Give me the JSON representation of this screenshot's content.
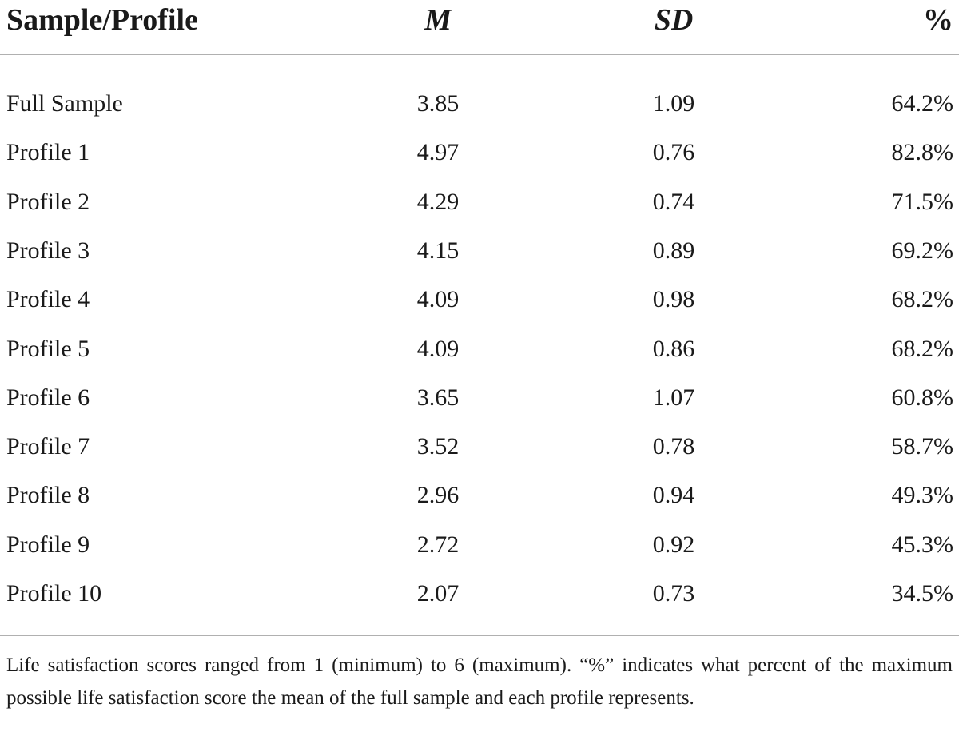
{
  "table": {
    "header": [
      "Sample/Profile",
      "M",
      "SD",
      "%"
    ],
    "rows": [
      [
        "Full Sample",
        "3.85",
        "1.09",
        "64.2%"
      ],
      [
        "Profile 1",
        "4.97",
        "0.76",
        "82.8%"
      ],
      [
        "Profile 2",
        "4.29",
        "0.74",
        "71.5%"
      ],
      [
        "Profile 3",
        "4.15",
        "0.89",
        "69.2%"
      ],
      [
        "Profile 4",
        "4.09",
        "0.98",
        "68.2%"
      ],
      [
        "Profile 5",
        "4.09",
        "0.86",
        "68.2%"
      ],
      [
        "Profile 6",
        "3.65",
        "1.07",
        "60.8%"
      ],
      [
        "Profile 7",
        "3.52",
        "0.78",
        "58.7%"
      ],
      [
        "Profile 8",
        "2.96",
        "0.94",
        "49.3%"
      ],
      [
        "Profile 9",
        "2.72",
        "0.92",
        "45.3%"
      ],
      [
        "Profile 10",
        "2.07",
        "0.73",
        "34.5%"
      ]
    ],
    "footnote": "Life satisfaction scores ranged from 1 (minimum) to 6 (maximum). “%” indicates what percent of the maximum possible life satisfaction score the mean of the full sample and each profile represents."
  }
}
